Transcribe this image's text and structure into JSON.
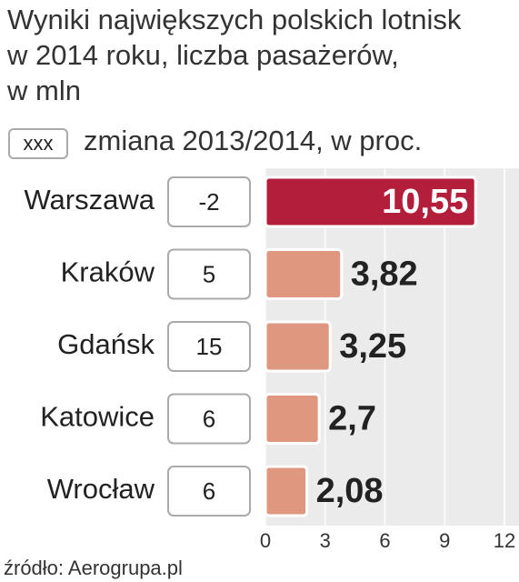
{
  "chart_data": {
    "type": "bar",
    "orientation": "horizontal",
    "title": "Wyniki największych polskich lotnisk\nw 2014 roku, liczba pasażerów,\nw mln",
    "legend": {
      "key": "xxx",
      "label": "zmiana 2013/2014, w proc."
    },
    "categories": [
      "Warszawa",
      "Kraków",
      "Gdańsk",
      "Katowice",
      "Wrocław"
    ],
    "values": [
      10.55,
      3.82,
      3.25,
      2.7,
      2.08
    ],
    "value_labels": [
      "10,55",
      "3,82",
      "3,25",
      "2,7",
      "2,08"
    ],
    "changes": [
      -2,
      5,
      15,
      6,
      6
    ],
    "colors": [
      "#b31f3b",
      "#e0977f",
      "#e0977f",
      "#e0977f",
      "#e0977f"
    ],
    "xlim": [
      0,
      12
    ],
    "xticks": [
      0,
      3,
      6,
      9,
      12
    ],
    "grid": true,
    "source": "źródło: Aerogrupa.pl"
  }
}
